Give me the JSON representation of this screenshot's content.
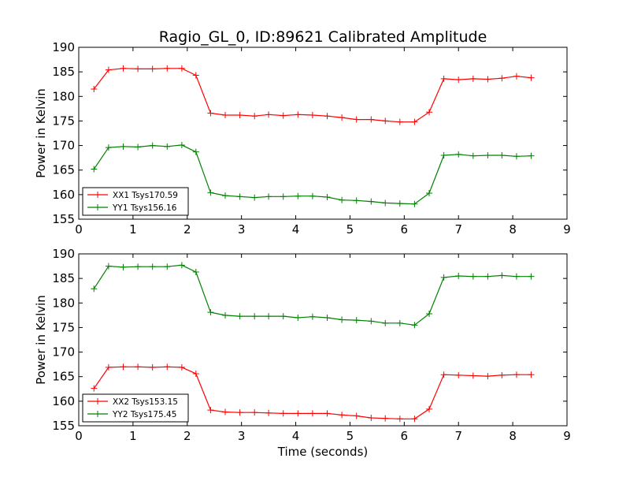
{
  "title": "Ragio_GL_0, ID:89621 Calibrated Amplitude",
  "xlabel": "Time (seconds)",
  "chart_data": [
    {
      "type": "line",
      "title": "Ragio_GL_0, ID:89621 Calibrated Amplitude",
      "xlabel": "",
      "ylabel": "Power in Kelvin",
      "xlim": [
        0,
        9
      ],
      "ylim": [
        155,
        190
      ],
      "xticks": [
        "0",
        "1",
        "2",
        "3",
        "4",
        "5",
        "6",
        "7",
        "8",
        "9"
      ],
      "yticks": [
        "155",
        "160",
        "165",
        "170",
        "175",
        "180",
        "185",
        "190"
      ],
      "legend_position": "lower-left",
      "grid": false,
      "x": [
        0.28,
        0.55,
        0.82,
        1.09,
        1.36,
        1.63,
        1.9,
        2.16,
        2.43,
        2.7,
        2.97,
        3.24,
        3.5,
        3.77,
        4.04,
        4.31,
        4.58,
        4.85,
        5.12,
        5.39,
        5.65,
        5.92,
        6.19,
        6.46,
        6.73,
        7.0,
        7.27,
        7.54,
        7.8,
        8.07,
        8.34
      ],
      "series": [
        {
          "name": "XX1 Tsys170.59",
          "color": "#ff0000",
          "values": [
            181.5,
            185.4,
            185.7,
            185.6,
            185.6,
            185.7,
            185.7,
            184.3,
            176.6,
            176.2,
            176.2,
            176.0,
            176.3,
            176.1,
            176.3,
            176.2,
            176.0,
            175.7,
            175.3,
            175.3,
            175.0,
            174.8,
            174.8,
            176.8,
            183.6,
            183.4,
            183.6,
            183.5,
            183.7,
            184.1,
            183.8
          ]
        },
        {
          "name": "YY1 Tsys156.16",
          "color": "#008000",
          "values": [
            165.2,
            169.6,
            169.8,
            169.7,
            170.0,
            169.8,
            170.1,
            168.7,
            160.4,
            159.8,
            159.6,
            159.4,
            159.6,
            159.6,
            159.7,
            159.7,
            159.5,
            158.9,
            158.8,
            158.6,
            158.3,
            158.2,
            158.1,
            160.3,
            168.0,
            168.2,
            167.9,
            168.0,
            168.0,
            167.8,
            167.9
          ]
        }
      ]
    },
    {
      "type": "line",
      "title": "",
      "xlabel": "Time (seconds)",
      "ylabel": "Power in Kelvin",
      "xlim": [
        0,
        9
      ],
      "ylim": [
        155,
        190
      ],
      "xticks": [
        "0",
        "1",
        "2",
        "3",
        "4",
        "5",
        "6",
        "7",
        "8",
        "9"
      ],
      "yticks": [
        "155",
        "160",
        "165",
        "170",
        "175",
        "180",
        "185",
        "190"
      ],
      "legend_position": "lower-left",
      "grid": false,
      "x": [
        0.28,
        0.55,
        0.82,
        1.09,
        1.36,
        1.63,
        1.9,
        2.16,
        2.43,
        2.7,
        2.97,
        3.24,
        3.5,
        3.77,
        4.04,
        4.31,
        4.58,
        4.85,
        5.12,
        5.39,
        5.65,
        5.92,
        6.19,
        6.46,
        6.73,
        7.0,
        7.27,
        7.54,
        7.8,
        8.07,
        8.34
      ],
      "series": [
        {
          "name": "XX2 Tsys153.15",
          "color": "#ff0000",
          "values": [
            162.6,
            166.9,
            167.0,
            167.0,
            166.9,
            167.0,
            166.9,
            165.6,
            158.2,
            157.8,
            157.7,
            157.7,
            157.6,
            157.5,
            157.5,
            157.5,
            157.5,
            157.2,
            157.0,
            156.6,
            156.5,
            156.4,
            156.4,
            158.4,
            165.4,
            165.3,
            165.2,
            165.1,
            165.3,
            165.4,
            165.4
          ]
        },
        {
          "name": "YY2 Tsys175.45",
          "color": "#008000",
          "values": [
            182.9,
            187.5,
            187.3,
            187.4,
            187.4,
            187.4,
            187.7,
            186.3,
            178.1,
            177.5,
            177.3,
            177.3,
            177.3,
            177.3,
            177.0,
            177.2,
            177.0,
            176.6,
            176.5,
            176.3,
            175.9,
            175.9,
            175.5,
            177.8,
            185.2,
            185.5,
            185.4,
            185.4,
            185.6,
            185.4,
            185.4
          ]
        }
      ]
    }
  ]
}
